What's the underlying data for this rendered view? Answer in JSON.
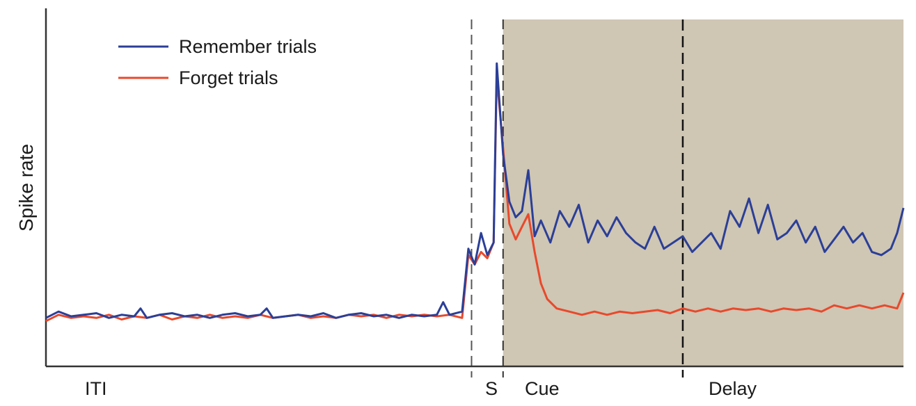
{
  "chart_data": {
    "type": "line",
    "title": "",
    "xlabel": "",
    "ylabel": "Spike rate",
    "x_tick_labels": [],
    "y_tick_labels": [],
    "grid": false,
    "legend_position": "top-left",
    "epochs": [
      {
        "label": "ITI",
        "start": 0,
        "end": 135
      },
      {
        "label": "S",
        "start": 135,
        "end": 145
      },
      {
        "label": "Cue",
        "start": 145,
        "end": 202
      },
      {
        "label": "Delay",
        "start": 202,
        "end": 272
      }
    ],
    "dividers": [
      {
        "x": 135,
        "style": "dashed",
        "color": "#555555"
      },
      {
        "x": 145,
        "style": "dashed",
        "color": "#333333"
      },
      {
        "x": 202,
        "style": "dashed",
        "color": "#111111"
      }
    ],
    "shaded_region": {
      "start": 145,
      "end": 272,
      "color": "#cfc6b4"
    },
    "xlim": [
      0,
      272
    ],
    "ylim": [
      0,
      100
    ],
    "series": [
      {
        "name": "Remember trials",
        "color": "#2b3f97",
        "points": [
          [
            0,
            11
          ],
          [
            4,
            13
          ],
          [
            8,
            11.5
          ],
          [
            12,
            12
          ],
          [
            16,
            12.5
          ],
          [
            20,
            11
          ],
          [
            24,
            12
          ],
          [
            28,
            11.5
          ],
          [
            30,
            14
          ],
          [
            32,
            11
          ],
          [
            36,
            12
          ],
          [
            40,
            12.5
          ],
          [
            44,
            11.5
          ],
          [
            48,
            12
          ],
          [
            52,
            11
          ],
          [
            56,
            12
          ],
          [
            60,
            12.5
          ],
          [
            64,
            11.5
          ],
          [
            68,
            12
          ],
          [
            70,
            14
          ],
          [
            72,
            11
          ],
          [
            76,
            11.5
          ],
          [
            80,
            12
          ],
          [
            84,
            11.5
          ],
          [
            88,
            12.5
          ],
          [
            92,
            11
          ],
          [
            96,
            12
          ],
          [
            100,
            12.5
          ],
          [
            104,
            11.5
          ],
          [
            108,
            12
          ],
          [
            112,
            11
          ],
          [
            116,
            12
          ],
          [
            120,
            11.5
          ],
          [
            124,
            12
          ],
          [
            126,
            16
          ],
          [
            128,
            12
          ],
          [
            132,
            13
          ],
          [
            134,
            33
          ],
          [
            136,
            28
          ],
          [
            138,
            38
          ],
          [
            140,
            31
          ],
          [
            142,
            35
          ],
          [
            143,
            92
          ],
          [
            145,
            63
          ],
          [
            147,
            48
          ],
          [
            149,
            43
          ],
          [
            151,
            45
          ],
          [
            153,
            58
          ],
          [
            155,
            37
          ],
          [
            157,
            42
          ],
          [
            160,
            35
          ],
          [
            163,
            45
          ],
          [
            166,
            40
          ],
          [
            169,
            47
          ],
          [
            172,
            35
          ],
          [
            175,
            42
          ],
          [
            178,
            37
          ],
          [
            181,
            43
          ],
          [
            184,
            38
          ],
          [
            187,
            35
          ],
          [
            190,
            33
          ],
          [
            193,
            40
          ],
          [
            196,
            33
          ],
          [
            199,
            35
          ],
          [
            202,
            37
          ],
          [
            205,
            32
          ],
          [
            208,
            35
          ],
          [
            211,
            38
          ],
          [
            214,
            33
          ],
          [
            217,
            45
          ],
          [
            220,
            40
          ],
          [
            223,
            49
          ],
          [
            226,
            38
          ],
          [
            229,
            47
          ],
          [
            232,
            36
          ],
          [
            235,
            38
          ],
          [
            238,
            42
          ],
          [
            241,
            35
          ],
          [
            244,
            40
          ],
          [
            247,
            32
          ],
          [
            250,
            36
          ],
          [
            253,
            40
          ],
          [
            256,
            35
          ],
          [
            259,
            38
          ],
          [
            262,
            32
          ],
          [
            265,
            31
          ],
          [
            268,
            33
          ],
          [
            270,
            38
          ],
          [
            272,
            46
          ]
        ]
      },
      {
        "name": "Forget trials",
        "color": "#e8492b",
        "points": [
          [
            0,
            10
          ],
          [
            4,
            12
          ],
          [
            8,
            11
          ],
          [
            12,
            11.5
          ],
          [
            16,
            11
          ],
          [
            20,
            12
          ],
          [
            24,
            10.5
          ],
          [
            28,
            11.5
          ],
          [
            32,
            11
          ],
          [
            36,
            12
          ],
          [
            40,
            10.5
          ],
          [
            44,
            11.5
          ],
          [
            48,
            11
          ],
          [
            52,
            12
          ],
          [
            56,
            11
          ],
          [
            60,
            11.5
          ],
          [
            64,
            11
          ],
          [
            68,
            12
          ],
          [
            72,
            11
          ],
          [
            76,
            11.5
          ],
          [
            80,
            12
          ],
          [
            84,
            11
          ],
          [
            88,
            11.5
          ],
          [
            92,
            11
          ],
          [
            96,
            12
          ],
          [
            100,
            11.5
          ],
          [
            104,
            12
          ],
          [
            108,
            11
          ],
          [
            112,
            12
          ],
          [
            116,
            11.5
          ],
          [
            120,
            12
          ],
          [
            124,
            11.5
          ],
          [
            128,
            12
          ],
          [
            132,
            11
          ],
          [
            134,
            31
          ],
          [
            136,
            28
          ],
          [
            138,
            32
          ],
          [
            140,
            30
          ],
          [
            142,
            35
          ],
          [
            143,
            88
          ],
          [
            145,
            65
          ],
          [
            147,
            41
          ],
          [
            149,
            36
          ],
          [
            151,
            40
          ],
          [
            153,
            44
          ],
          [
            155,
            32
          ],
          [
            157,
            22
          ],
          [
            159,
            17
          ],
          [
            162,
            14
          ],
          [
            166,
            13
          ],
          [
            170,
            12
          ],
          [
            174,
            13
          ],
          [
            178,
            12
          ],
          [
            182,
            13
          ],
          [
            186,
            12.5
          ],
          [
            190,
            13
          ],
          [
            194,
            13.5
          ],
          [
            198,
            12.5
          ],
          [
            202,
            14
          ],
          [
            206,
            13
          ],
          [
            210,
            14
          ],
          [
            214,
            13
          ],
          [
            218,
            14
          ],
          [
            222,
            13.5
          ],
          [
            226,
            14
          ],
          [
            230,
            13
          ],
          [
            234,
            14
          ],
          [
            238,
            13.5
          ],
          [
            242,
            14
          ],
          [
            246,
            13
          ],
          [
            250,
            15
          ],
          [
            254,
            14
          ],
          [
            258,
            15
          ],
          [
            262,
            14
          ],
          [
            266,
            15
          ],
          [
            270,
            14
          ],
          [
            272,
            19
          ]
        ]
      }
    ]
  }
}
